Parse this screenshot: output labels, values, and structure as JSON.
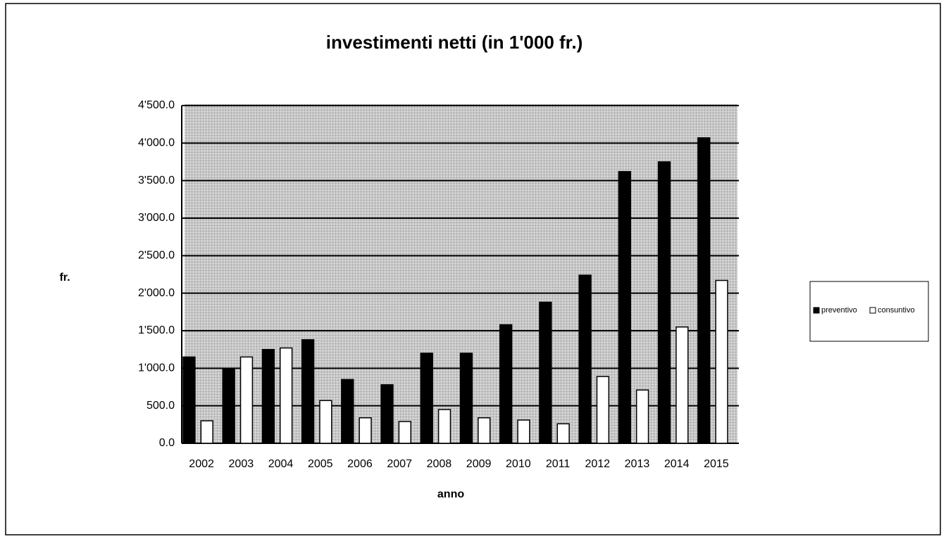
{
  "chart_data": {
    "type": "bar",
    "title": "investimenti netti (in 1'000 fr.)",
    "xlabel": "anno",
    "ylabel": "fr.",
    "categories": [
      "2002",
      "2003",
      "2004",
      "2005",
      "2006",
      "2007",
      "2008",
      "2009",
      "2010",
      "2011",
      "2012",
      "2013",
      "2014",
      "2015"
    ],
    "series": [
      {
        "name": "preventivo",
        "color": "#000000",
        "values": [
          1150,
          1000,
          1250,
          1380,
          850,
          780,
          1200,
          1200,
          1580,
          1880,
          2240,
          3620,
          3750,
          4070
        ]
      },
      {
        "name": "consuntivo",
        "color": "#ffffff",
        "values": [
          300,
          1150,
          1270,
          570,
          340,
          290,
          450,
          340,
          310,
          260,
          890,
          710,
          1550,
          2170
        ]
      }
    ],
    "ylim": [
      0,
      4500
    ],
    "yticks": [
      {
        "value": 0,
        "label": "0.0"
      },
      {
        "value": 500,
        "label": "500.0"
      },
      {
        "value": 1000,
        "label": "1'000.0"
      },
      {
        "value": 1500,
        "label": "1'500.0"
      },
      {
        "value": 2000,
        "label": "2'000.0"
      },
      {
        "value": 2500,
        "label": "2'500.0"
      },
      {
        "value": 3000,
        "label": "3'000.0"
      },
      {
        "value": 3500,
        "label": "3'500.0"
      },
      {
        "value": 4000,
        "label": "4'000.0"
      },
      {
        "value": 4500,
        "label": "4'500.0"
      }
    ],
    "grid": true,
    "legend": "right"
  }
}
